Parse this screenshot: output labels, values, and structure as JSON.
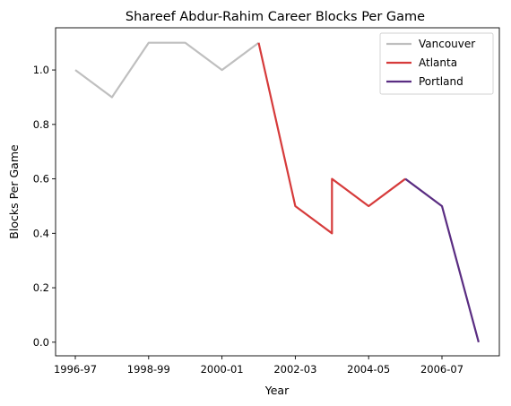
{
  "chart_data": {
    "type": "line",
    "title": "Shareef Abdur-Rahim Career Blocks Per Game",
    "xlabel": "Year",
    "ylabel": "Blocks Per Game",
    "ylim": [
      -0.05,
      1.155
    ],
    "y_ticks": [
      0.0,
      0.2,
      0.4,
      0.6,
      0.8,
      1.0
    ],
    "x_ticks": [
      "1996-97",
      "1998-99",
      "2000-01",
      "2002-03",
      "2004-05",
      "2006-07"
    ],
    "x_tick_index": [
      0,
      2,
      4,
      6,
      8,
      10
    ],
    "grid": false,
    "legend_position": "top-right",
    "series": [
      {
        "name": "Vancouver",
        "color": "#bfbfbf",
        "x_index": [
          0,
          1,
          2,
          3,
          4,
          5
        ],
        "values": [
          1.0,
          0.9,
          1.1,
          1.1,
          1.0,
          1.1
        ]
      },
      {
        "name": "Atlanta",
        "color": "#d63b3b",
        "x_index": [
          5,
          6,
          7,
          7,
          8,
          9
        ],
        "values": [
          1.1,
          0.5,
          0.4,
          0.6,
          0.5,
          0.6
        ]
      },
      {
        "name": "Portland",
        "color": "#5a2d82",
        "x_index": [
          9,
          10,
          11
        ],
        "values": [
          0.6,
          0.5,
          0.0
        ]
      }
    ]
  }
}
